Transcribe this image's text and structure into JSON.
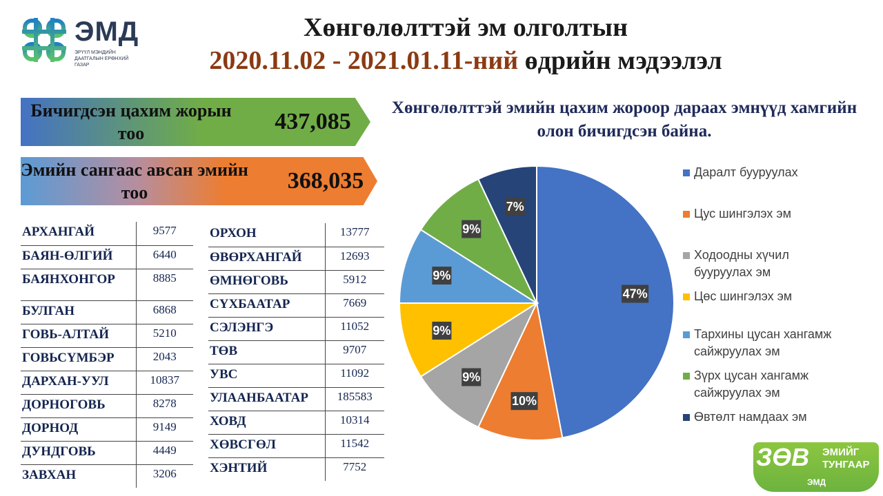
{
  "logo": {
    "text": "ЭМД",
    "subtitle": "ЭРҮҮЛ МЭНДИЙН ДААТГАЛЫН ЕРӨНХИЙ ГАЗАР"
  },
  "title": {
    "line1": "Хөнгөлөлттэй эм олголтын",
    "date_range": "2020.11.02 - 2021.01.11-ний",
    "line2_rest": " өдрийн мэдээлэл"
  },
  "banners": [
    {
      "label": "Бичигдсэн цахим жорын тоо",
      "value": "437,085"
    },
    {
      "label": "Эмийн сангаас авсан эмийн тоо",
      "value": "368,035"
    }
  ],
  "table_left": [
    {
      "name": "АРХАНГАЙ",
      "value": "9577"
    },
    {
      "name": "БАЯН-ӨЛГИЙ",
      "value": "6440"
    },
    {
      "name": "БАЯНХОНГОР",
      "value": "8885"
    },
    {
      "name": "БУЛГАН",
      "value": "6868"
    },
    {
      "name": "ГОВЬ-АЛТАЙ",
      "value": "5210"
    },
    {
      "name": "ГОВЬСҮМБЭР",
      "value": "2043"
    },
    {
      "name": "ДАРХАН-УУЛ",
      "value": "10837"
    },
    {
      "name": "ДОРНОГОВЬ",
      "value": "8278"
    },
    {
      "name": "ДОРНОД",
      "value": "9149"
    },
    {
      "name": "ДУНДГОВЬ",
      "value": "4449"
    },
    {
      "name": "ЗАВХАН",
      "value": "3206"
    }
  ],
  "table_right": [
    {
      "name": "ОРХОН",
      "value": "13777"
    },
    {
      "name": "ӨВӨРХАНГАЙ",
      "value": "12693"
    },
    {
      "name": "ӨМНӨГОВЬ",
      "value": "5912"
    },
    {
      "name": "СҮХБААТАР",
      "value": "7669"
    },
    {
      "name": "СЭЛЭНГЭ",
      "value": "11052"
    },
    {
      "name": "ТӨВ",
      "value": "9707"
    },
    {
      "name": "УВС",
      "value": "11092"
    },
    {
      "name": "УЛААНБААТАР",
      "value": "185583"
    },
    {
      "name": "ХОВД",
      "value": "10314"
    },
    {
      "name": "ХӨВСГӨЛ",
      "value": "11542"
    },
    {
      "name": "ХЭНТИЙ",
      "value": "7752"
    }
  ],
  "chart_data": {
    "type": "pie",
    "title": "Хөнгөлөлттэй  эмийн цахим жороор дараах эмнүүд хамгийн олон бичигдсэн байна.",
    "categories": [
      "Даралт бууруулах",
      "Цус шингэлэх  эм",
      "Ходоодны хүчил бууруулах эм",
      "Цөс шингэлэх  эм",
      "Тархины  цусан хангамж сайжруулах эм",
      "Зүрх цусан хангамж сайжруулах эм",
      "Өвтөлт намдаах эм"
    ],
    "values": [
      47,
      10,
      9,
      9,
      9,
      9,
      7
    ],
    "data_labels": [
      "47%",
      "10%",
      "9%",
      "9%",
      "9%",
      "9%",
      "7%"
    ],
    "colors": [
      "#4472c4",
      "#ed7d31",
      "#a5a5a5",
      "#ffc000",
      "#5b9bd5",
      "#70ad47",
      "#264478"
    ],
    "legend": "right"
  },
  "badge": {
    "big": "ЗӨВ",
    "line1": "ЭМИЙГ",
    "line2": "ТУНГААР",
    "logo": "ЭМД"
  }
}
